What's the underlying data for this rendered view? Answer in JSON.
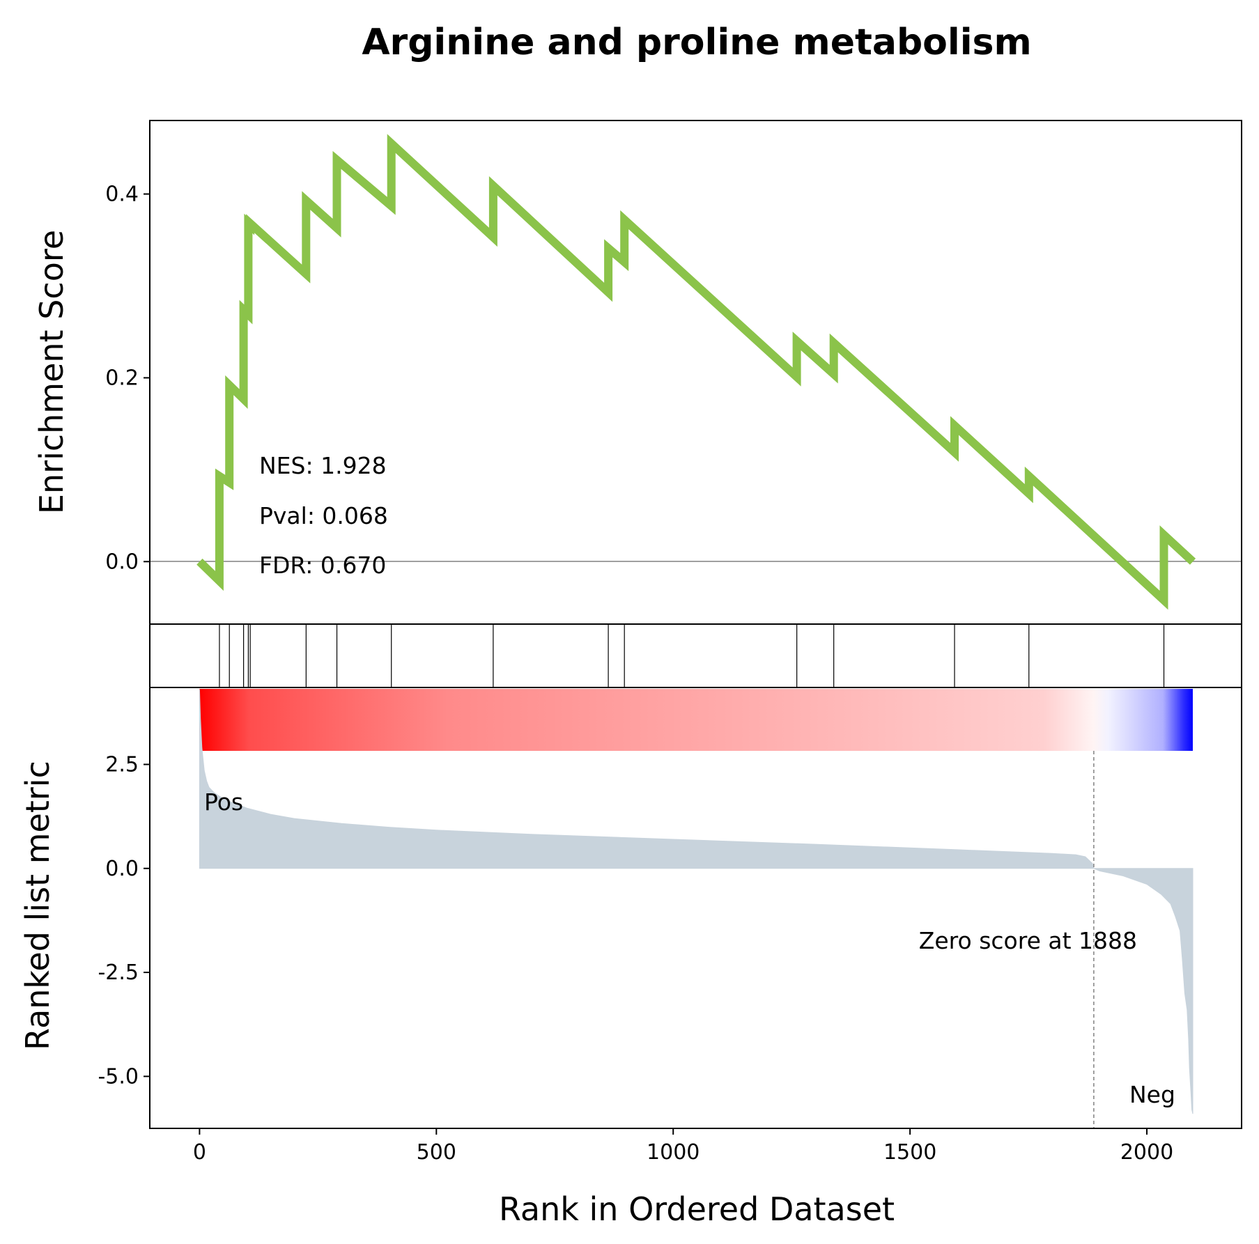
{
  "chart_data": {
    "type": "line",
    "title": "Arginine and proline metabolism",
    "xlabel": "Rank in Ordered Dataset",
    "xlim": [
      -105,
      2200
    ],
    "xticks": [
      0,
      500,
      1000,
      1500,
      2000
    ],
    "es_panel": {
      "ylabel": "Enrichment Score",
      "ylim": [
        -0.068,
        0.48
      ],
      "yticks": [
        0.4,
        0.2,
        0.0
      ],
      "ytick_labels": [
        "0.4",
        "0.2",
        "0.0"
      ],
      "line_color": "#8bc34a",
      "series": {
        "name": "Enrichment Score",
        "x": [
          0,
          42,
          42,
          63,
          63,
          93,
          93,
          103,
          103,
          107,
          107,
          225,
          225,
          290,
          290,
          405,
          405,
          620,
          620,
          863,
          863,
          897,
          897,
          1261,
          1261,
          1339,
          1339,
          1594,
          1594,
          1751,
          1751,
          2036,
          2036,
          2097
        ],
        "y": [
          0.0,
          -0.021,
          0.093,
          0.086,
          0.192,
          0.177,
          0.274,
          0.269,
          0.368,
          0.366,
          0.368,
          0.313,
          0.393,
          0.363,
          0.437,
          0.387,
          0.455,
          0.353,
          0.409,
          0.293,
          0.341,
          0.326,
          0.372,
          0.201,
          0.24,
          0.204,
          0.238,
          0.119,
          0.148,
          0.074,
          0.093,
          -0.042,
          0.029,
          0.0
        ]
      },
      "stats": {
        "nes": "NES: 1.928",
        "pval": "Pval: 0.068",
        "fdr": "FDR: 0.670"
      }
    },
    "hits": [
      42,
      63,
      93,
      103,
      107,
      225,
      290,
      405,
      620,
      863,
      897,
      1261,
      1339,
      1594,
      1751,
      2036
    ],
    "ranked_panel": {
      "ylabel": "Ranked list metric",
      "ylim": [
        -6.25,
        4.35
      ],
      "yticks": [
        2.5,
        0.0,
        -2.5,
        -5.0
      ],
      "ytick_labels": [
        "2.5",
        "0.0",
        "-2.5",
        "-5.0"
      ],
      "fill_color": "#c8d3dc",
      "profile": {
        "x": [
          0,
          2,
          5,
          10,
          15,
          20,
          30,
          40,
          50,
          70,
          100,
          150,
          200,
          300,
          400,
          500,
          700,
          1000,
          1300,
          1600,
          1800,
          1850,
          1870,
          1885,
          1888,
          1900,
          1950,
          2000,
          2030,
          2050,
          2060,
          2070,
          2075,
          2080,
          2085,
          2088,
          2090,
          2093,
          2095,
          2097
        ],
        "y": [
          4.3,
          3.6,
          2.9,
          2.35,
          2.1,
          1.95,
          1.83,
          1.75,
          1.68,
          1.58,
          1.45,
          1.3,
          1.2,
          1.08,
          0.99,
          0.92,
          0.82,
          0.7,
          0.58,
          0.45,
          0.36,
          0.33,
          0.28,
          0.12,
          0.0,
          -0.06,
          -0.18,
          -0.38,
          -0.62,
          -0.85,
          -1.15,
          -1.5,
          -2.2,
          -3.0,
          -3.4,
          -4.1,
          -4.8,
          -5.4,
          -5.8,
          -5.9
        ]
      },
      "zero_score_rank": 1888,
      "zero_label": "Zero score at 1888",
      "pos_label": "Pos",
      "neg_label": "Neg",
      "pos_color": "#ff0000",
      "neg_color": "#0000ff"
    }
  }
}
